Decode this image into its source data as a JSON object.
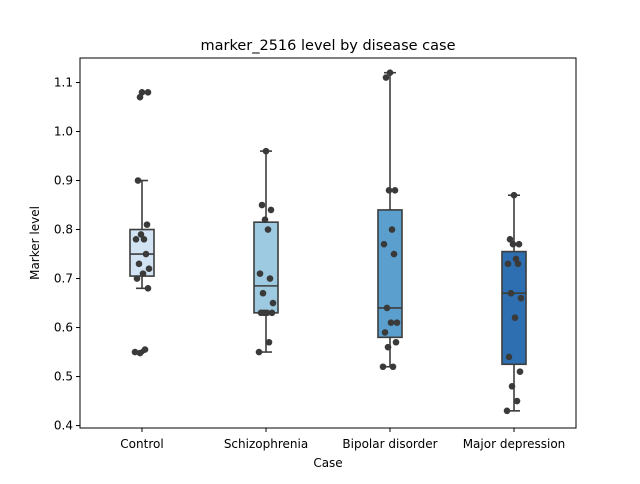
{
  "chart_data": {
    "type": "box",
    "title": "marker_2516 level by disease case",
    "xlabel": "Case",
    "ylabel": "Marker level",
    "ylim": [
      0.395,
      1.15
    ],
    "yticks": [
      0.4,
      0.5,
      0.6,
      0.7,
      0.8,
      0.9,
      1.0,
      1.1
    ],
    "ytick_labels": [
      "0.4",
      "0.5",
      "0.6",
      "0.7",
      "0.8",
      "0.9",
      "1.0",
      "1.1"
    ],
    "grid": false,
    "legend": "none",
    "categories": [
      "Control",
      "Schizophrenia",
      "Bipolar disorder",
      "Major depression"
    ],
    "box_colors": [
      "#d2e3f3",
      "#9dcae1",
      "#5a9fce",
      "#2d6fb0"
    ],
    "point_color": "#3a3a3a",
    "boxes": [
      {
        "category": "Control",
        "whisker_low": 0.68,
        "q1": 0.705,
        "median": 0.75,
        "q3": 0.8,
        "whisker_high": 0.9,
        "outliers": [
          0.55,
          1.08
        ],
        "points": [
          0.55,
          0.555,
          0.548,
          0.68,
          0.7,
          0.71,
          0.72,
          0.73,
          0.75,
          0.78,
          0.78,
          0.79,
          0.81,
          0.9,
          1.08,
          1.08,
          1.07
        ]
      },
      {
        "category": "Schizophrenia",
        "whisker_low": 0.55,
        "q1": 0.63,
        "median": 0.685,
        "q3": 0.815,
        "whisker_high": 0.96,
        "outliers": [],
        "points": [
          0.55,
          0.57,
          0.63,
          0.63,
          0.63,
          0.63,
          0.65,
          0.67,
          0.7,
          0.71,
          0.8,
          0.82,
          0.84,
          0.85,
          0.96
        ]
      },
      {
        "category": "Bipolar disorder",
        "whisker_low": 0.52,
        "q1": 0.58,
        "median": 0.64,
        "q3": 0.84,
        "whisker_high": 1.12,
        "outliers": [],
        "points": [
          0.52,
          0.52,
          0.56,
          0.57,
          0.59,
          0.61,
          0.61,
          0.64,
          0.75,
          0.77,
          0.8,
          0.88,
          0.88,
          1.11,
          1.12
        ]
      },
      {
        "category": "Major depression",
        "whisker_low": 0.43,
        "q1": 0.525,
        "median": 0.67,
        "q3": 0.755,
        "whisker_high": 0.87,
        "outliers": [],
        "points": [
          0.43,
          0.45,
          0.48,
          0.51,
          0.54,
          0.62,
          0.66,
          0.67,
          0.73,
          0.73,
          0.74,
          0.77,
          0.77,
          0.78,
          0.87
        ]
      }
    ]
  }
}
